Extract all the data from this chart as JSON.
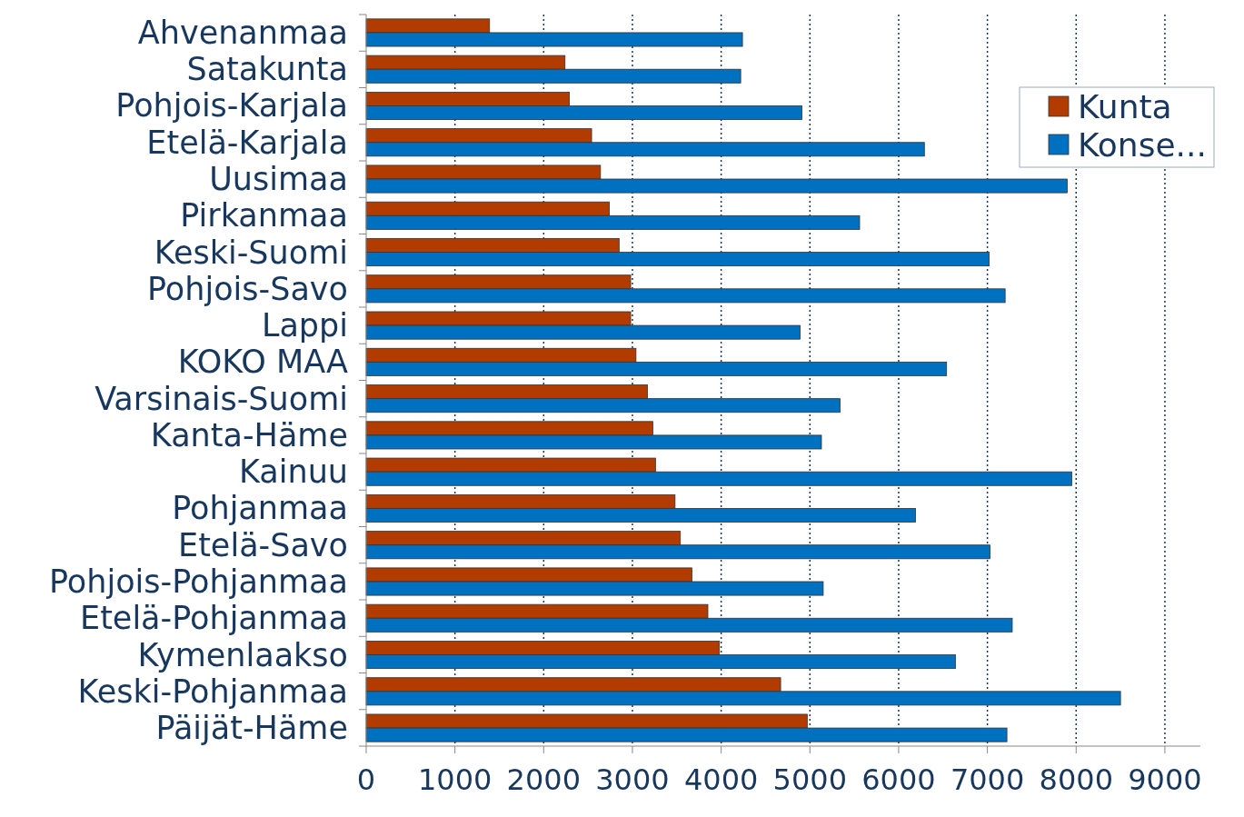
{
  "chart_data": {
    "type": "bar",
    "orientation": "horizontal",
    "categories": [
      "Ahvenanmaa",
      "Satakunta",
      "Pohjois-Karjala",
      "Etelä-Karjala",
      "Uusimaa",
      "Pirkanmaa",
      "Keski-Suomi",
      "Pohjois-Savo",
      "Lappi",
      "KOKO MAA",
      "Varsinais-Suomi",
      "Kanta-Häme",
      "Kainuu",
      "Pohjanmaa",
      "Etelä-Savo",
      "Pohjois-Pohjanmaa",
      "Etelä-Pohjanmaa",
      "Kymenlaakso",
      "Keski-Pohjanmaa",
      "Päijät-Häme"
    ],
    "series": [
      {
        "name": "Kunta",
        "color": "#b23c00",
        "values": [
          1390,
          2240,
          2290,
          2540,
          2640,
          2740,
          2850,
          2980,
          2980,
          3040,
          3170,
          3230,
          3260,
          3480,
          3540,
          3670,
          3850,
          3980,
          4670,
          4970
        ]
      },
      {
        "name": "Konse...",
        "color": "#0070c0",
        "values": [
          4240,
          4220,
          4910,
          6290,
          7900,
          5560,
          7020,
          7200,
          4890,
          6540,
          5340,
          5130,
          7950,
          6190,
          7030,
          5150,
          7280,
          6640,
          8500,
          7220
        ]
      }
    ],
    "xlim": [
      0,
      9400
    ],
    "xticks": [
      0,
      1000,
      2000,
      3000,
      4000,
      5000,
      6000,
      7000,
      8000,
      9000
    ],
    "grid": "x",
    "legend": "top right"
  }
}
